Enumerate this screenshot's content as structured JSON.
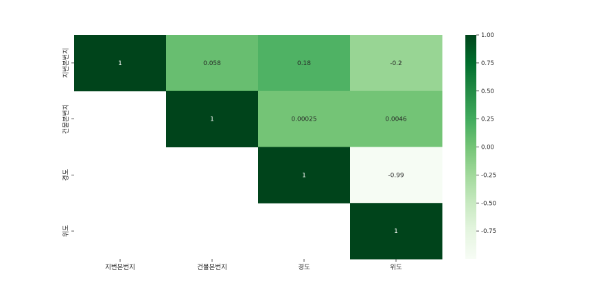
{
  "chart_data": {
    "type": "heatmap",
    "title": "",
    "mask": "lower-triangle",
    "x_labels": [
      "지번본번지",
      "건물본번지",
      "경도",
      "위도"
    ],
    "y_labels": [
      "지번본번지",
      "건물본번지",
      "경도",
      "위도"
    ],
    "matrix": [
      [
        1,
        0.058,
        0.18,
        -0.2
      ],
      [
        null,
        1,
        0.00025,
        0.0046
      ],
      [
        null,
        null,
        1,
        -0.99
      ],
      [
        null,
        null,
        null,
        1
      ]
    ],
    "annotations": [
      [
        "1",
        "0.058",
        "0.18",
        "-0.2"
      ],
      [
        "",
        "1",
        "0.00025",
        "0.0046"
      ],
      [
        "",
        "",
        "1",
        "-0.99"
      ],
      [
        "",
        "",
        "",
        "1"
      ]
    ],
    "colormap": "Greens",
    "vmin": -1,
    "vmax": 1,
    "colorbar_ticks": [
      "1.00",
      "0.75",
      "0.50",
      "0.25",
      "0.00",
      "-0.25",
      "-0.50",
      "-0.75"
    ],
    "colorbar_values": [
      1.0,
      0.75,
      0.5,
      0.25,
      0.0,
      -0.25,
      -0.5,
      -0.75
    ],
    "colors": {
      "greens_stops": [
        "#f7fcf5",
        "#e5f5e0",
        "#c7e9c0",
        "#a1d99b",
        "#74c476",
        "#41ab5d",
        "#238b45",
        "#006d2c",
        "#00441b"
      ]
    }
  }
}
